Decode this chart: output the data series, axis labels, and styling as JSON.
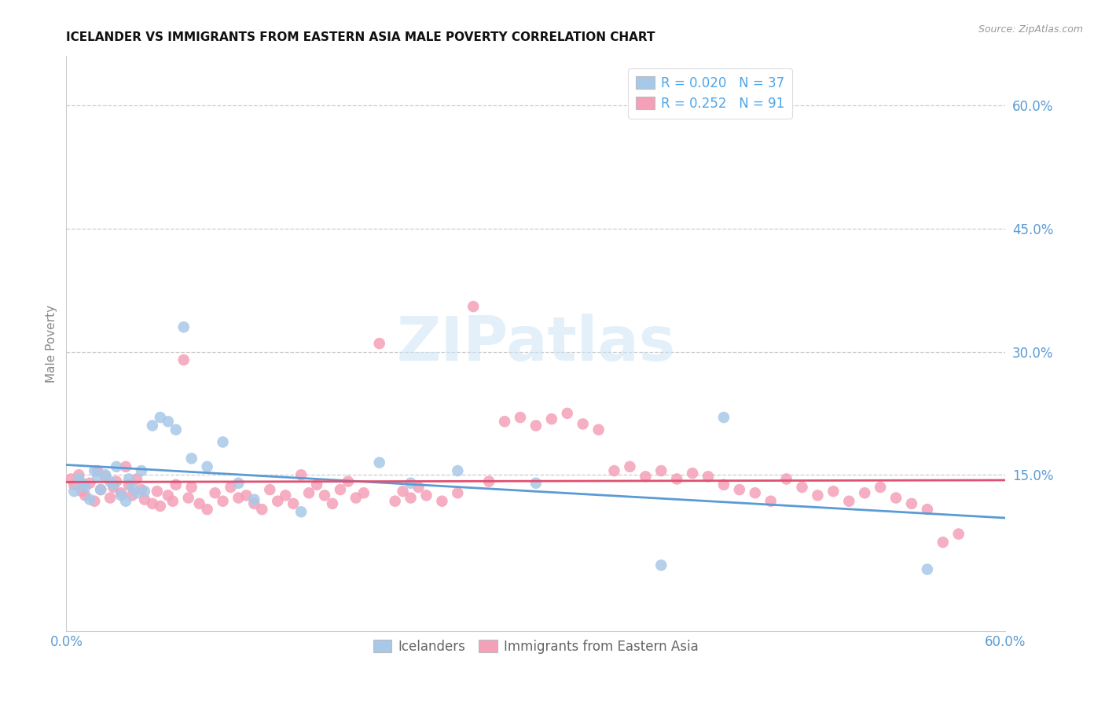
{
  "title": "ICELANDER VS IMMIGRANTS FROM EASTERN ASIA MALE POVERTY CORRELATION CHART",
  "source": "Source: ZipAtlas.com",
  "ylabel": "Male Poverty",
  "right_yticks": [
    "60.0%",
    "45.0%",
    "30.0%",
    "15.0%"
  ],
  "right_ytick_vals": [
    0.6,
    0.45,
    0.3,
    0.15
  ],
  "xmin": 0.0,
  "xmax": 0.6,
  "ymin": -0.04,
  "ymax": 0.66,
  "icelander_color": "#a8c8e8",
  "immigrant_color": "#f4a0b8",
  "icelander_edge": "#7aaed4",
  "immigrant_edge": "#e07090",
  "icelander_R": 0.02,
  "icelander_N": 37,
  "immigrant_R": 0.252,
  "immigrant_N": 91,
  "legend_color": "#4da6e8",
  "trend_icelander_color": "#5b9bd5",
  "trend_immigrant_color": "#e05070",
  "watermark": "ZIPatlas",
  "icelander_x": [
    0.005,
    0.008,
    0.01,
    0.012,
    0.015,
    0.018,
    0.02,
    0.022,
    0.025,
    0.028,
    0.03,
    0.032,
    0.035,
    0.038,
    0.04,
    0.042,
    0.045,
    0.048,
    0.05,
    0.055,
    0.06,
    0.065,
    0.07,
    0.075,
    0.08,
    0.09,
    0.1,
    0.11,
    0.12,
    0.15,
    0.2,
    0.22,
    0.25,
    0.3,
    0.38,
    0.42,
    0.55
  ],
  "icelander_y": [
    0.13,
    0.145,
    0.14,
    0.135,
    0.12,
    0.155,
    0.148,
    0.132,
    0.15,
    0.142,
    0.138,
    0.16,
    0.125,
    0.118,
    0.145,
    0.135,
    0.128,
    0.155,
    0.13,
    0.21,
    0.22,
    0.215,
    0.205,
    0.33,
    0.17,
    0.16,
    0.19,
    0.14,
    0.12,
    0.105,
    0.165,
    0.14,
    0.155,
    0.14,
    0.04,
    0.22,
    0.035
  ],
  "immigrant_x": [
    0.003,
    0.005,
    0.008,
    0.01,
    0.012,
    0.015,
    0.018,
    0.02,
    0.022,
    0.025,
    0.028,
    0.03,
    0.032,
    0.035,
    0.038,
    0.04,
    0.042,
    0.045,
    0.048,
    0.05,
    0.055,
    0.058,
    0.06,
    0.065,
    0.068,
    0.07,
    0.075,
    0.078,
    0.08,
    0.085,
    0.09,
    0.095,
    0.1,
    0.105,
    0.11,
    0.115,
    0.12,
    0.125,
    0.13,
    0.135,
    0.14,
    0.145,
    0.15,
    0.155,
    0.16,
    0.165,
    0.17,
    0.175,
    0.18,
    0.185,
    0.19,
    0.2,
    0.21,
    0.215,
    0.22,
    0.225,
    0.23,
    0.24,
    0.25,
    0.26,
    0.27,
    0.28,
    0.29,
    0.3,
    0.31,
    0.32,
    0.33,
    0.34,
    0.35,
    0.36,
    0.37,
    0.38,
    0.39,
    0.4,
    0.41,
    0.42,
    0.43,
    0.44,
    0.45,
    0.46,
    0.47,
    0.48,
    0.49,
    0.5,
    0.51,
    0.52,
    0.53,
    0.54,
    0.55,
    0.56,
    0.57
  ],
  "immigrant_y": [
    0.145,
    0.138,
    0.15,
    0.13,
    0.125,
    0.14,
    0.118,
    0.155,
    0.132,
    0.148,
    0.122,
    0.135,
    0.142,
    0.128,
    0.16,
    0.138,
    0.125,
    0.145,
    0.132,
    0.12,
    0.115,
    0.13,
    0.112,
    0.125,
    0.118,
    0.138,
    0.29,
    0.122,
    0.135,
    0.115,
    0.108,
    0.128,
    0.118,
    0.135,
    0.122,
    0.125,
    0.115,
    0.108,
    0.132,
    0.118,
    0.125,
    0.115,
    0.15,
    0.128,
    0.138,
    0.125,
    0.115,
    0.132,
    0.142,
    0.122,
    0.128,
    0.31,
    0.118,
    0.13,
    0.122,
    0.135,
    0.125,
    0.118,
    0.128,
    0.355,
    0.142,
    0.215,
    0.22,
    0.21,
    0.218,
    0.225,
    0.212,
    0.205,
    0.155,
    0.16,
    0.148,
    0.155,
    0.145,
    0.152,
    0.148,
    0.138,
    0.132,
    0.128,
    0.118,
    0.145,
    0.135,
    0.125,
    0.13,
    0.118,
    0.128,
    0.135,
    0.122,
    0.115,
    0.108,
    0.068,
    0.078
  ]
}
